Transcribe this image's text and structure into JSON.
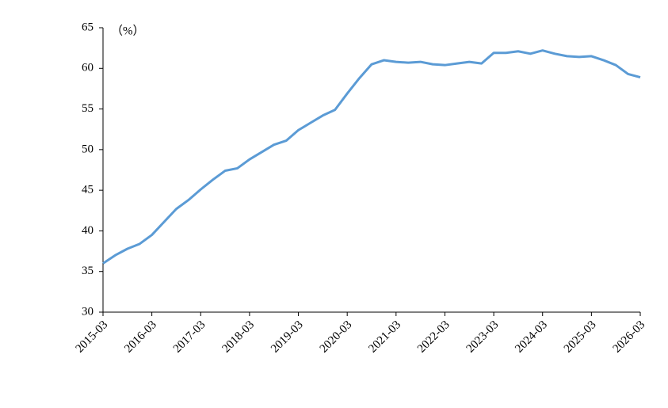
{
  "chart_data": {
    "type": "line",
    "y_label": "（%）",
    "categories": [
      "2015-03",
      null,
      null,
      null,
      "2016-03",
      null,
      null,
      null,
      "2017-03",
      null,
      null,
      null,
      "2018-03",
      null,
      null,
      null,
      "2019-03",
      null,
      null,
      null,
      "2020-03",
      null,
      null,
      null,
      "2021-03",
      null,
      null,
      null,
      "2022-03",
      null,
      null,
      null,
      "2023-03",
      null,
      null,
      null,
      "2024-03",
      null,
      null,
      null,
      "2025-03",
      null,
      null,
      null,
      "2026-03"
    ],
    "series": [
      {
        "color": "#5b9bd5",
        "values": [
          36.0,
          37.0,
          37.8,
          38.4,
          39.5,
          41.1,
          42.7,
          43.8,
          45.1,
          46.3,
          47.4,
          47.7,
          48.8,
          49.7,
          50.6,
          51.1,
          52.4,
          53.3,
          54.2,
          54.9,
          56.9,
          58.8,
          60.5,
          61.0,
          60.8,
          60.7,
          60.8,
          60.5,
          60.4,
          60.6,
          60.8,
          60.6,
          61.9,
          61.9,
          62.1,
          61.8,
          62.2,
          61.8,
          61.5,
          61.4,
          61.5,
          61.0,
          60.4,
          59.3,
          58.9
        ]
      }
    ],
    "ylim": [
      30,
      65
    ],
    "yticks": [
      30,
      35,
      40,
      45,
      50,
      55,
      60,
      65
    ],
    "grid": false
  }
}
